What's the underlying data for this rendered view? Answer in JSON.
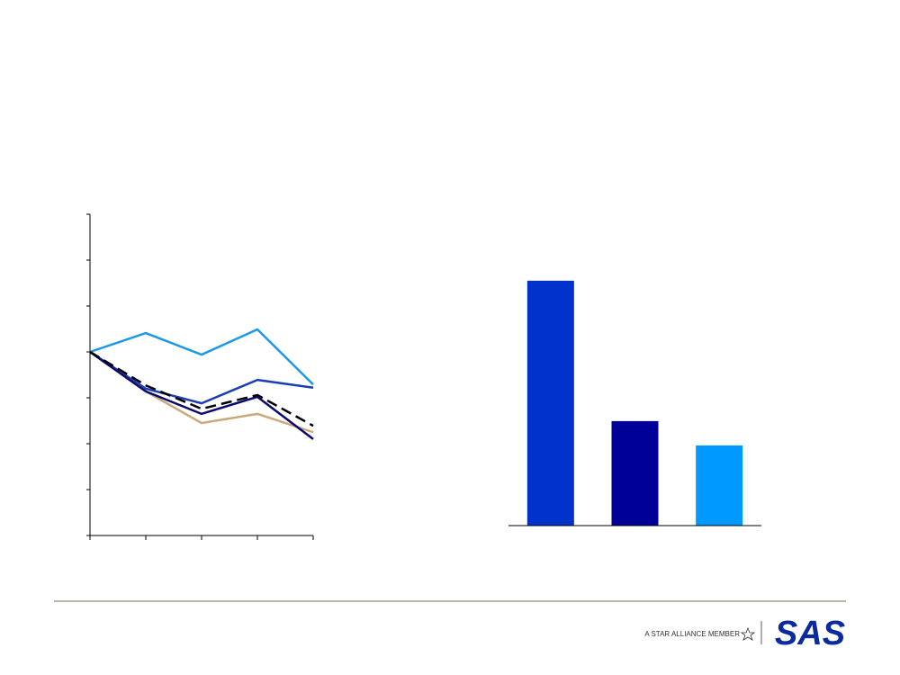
{
  "chart_data": [
    {
      "type": "line",
      "categories": [
        null,
        null,
        null,
        null,
        null
      ],
      "ylim": [
        -4,
        3
      ],
      "yticks": [
        -4,
        -3,
        -2,
        -1,
        0,
        1,
        2,
        3
      ],
      "series": [
        {
          "color": "#1a9ae6",
          "values": [
            0,
            0.41,
            -0.06,
            0.49,
            -0.71
          ]
        },
        {
          "color": "#1a3fb3",
          "values": [
            0,
            -0.8,
            -1.12,
            -0.61,
            -0.78
          ]
        },
        {
          "color": "#c8a97a",
          "values": [
            0,
            -0.86,
            -1.55,
            -1.35,
            -1.75
          ]
        },
        {
          "color": "#0a0a6e",
          "values": [
            0,
            -0.86,
            -1.35,
            -0.98,
            -1.9
          ]
        },
        {
          "color": "#000000",
          "dashed": true,
          "values": [
            0,
            -0.73,
            -1.24,
            -0.94,
            -1.61
          ]
        }
      ]
    },
    {
      "type": "bar",
      "categories": [
        null,
        null,
        null
      ],
      "ylim": [
        0,
        10
      ],
      "values": [
        9.07,
        3.87,
        2.97
      ],
      "colors": [
        "#0033cc",
        "#000099",
        "#0099ff"
      ]
    }
  ],
  "footer": {
    "tagline": "A STAR ALLIANCE MEMBER",
    "logo": "SAS"
  }
}
